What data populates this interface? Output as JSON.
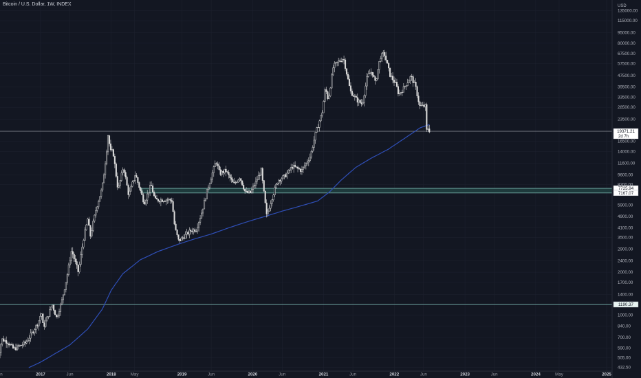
{
  "header": {
    "title": "Bitcoin / U.S. Dollar, 1W, INDEX",
    "currency": "USD"
  },
  "colors": {
    "background": "#131722",
    "grid": "#1e2230",
    "candle": "#d9d9d9",
    "ma_line": "#2f4fb8",
    "level_line": "#8fd6cc",
    "current_line": "#9598a1",
    "zone_fill": "#1e3a3c",
    "label_bg": "#e8f4f2"
  },
  "chart_data": {
    "type": "candlestick",
    "title": "Bitcoin / U.S. Dollar, 1W, INDEX",
    "y_scale": "log",
    "ylim": [
      430,
      155000
    ],
    "x_range": [
      "2016-05-15",
      "2025-01-01"
    ],
    "y_ticks": [
      "135000.00",
      "115000.00",
      "95000.00",
      "80000.00",
      "67500.00",
      "57500.00",
      "47500.00",
      "39500.00",
      "33500.00",
      "28500.00",
      "23500.00",
      "16500.00",
      "14000.00",
      "11600.00",
      "9600.00",
      "8200.00",
      "5900.00",
      "4900.00",
      "4100.00",
      "3500.00",
      "2900.00",
      "2400.00",
      "2000.00",
      "1700.00",
      "1400.00",
      "1000.00",
      "840.00",
      "700.00",
      "590.00",
      "505.00",
      "432.50"
    ],
    "x_ticks": [
      {
        "date": "2016-06-01",
        "label": "Jun"
      },
      {
        "date": "2017-01-01",
        "label": "2017"
      },
      {
        "date": "2017-06-01",
        "label": "Jun"
      },
      {
        "date": "2018-01-01",
        "label": "2018"
      },
      {
        "date": "2018-05-01",
        "label": "May"
      },
      {
        "date": "2019-01-01",
        "label": "2019"
      },
      {
        "date": "2019-06-01",
        "label": "Jun"
      },
      {
        "date": "2020-01-01",
        "label": "2020"
      },
      {
        "date": "2020-06-01",
        "label": "Jun"
      },
      {
        "date": "2021-01-01",
        "label": "2021"
      },
      {
        "date": "2021-06-01",
        "label": "Jun"
      },
      {
        "date": "2022-01-01",
        "label": "2022"
      },
      {
        "date": "2022-06-01",
        "label": "Jun"
      },
      {
        "date": "2023-01-01",
        "label": "2023"
      },
      {
        "date": "2023-06-01",
        "label": "Jun"
      },
      {
        "date": "2024-01-01",
        "label": "2024"
      },
      {
        "date": "2024-05-01",
        "label": "May"
      },
      {
        "date": "2025-01-01",
        "label": "2025"
      }
    ],
    "price_anchors": [
      [
        "2016-05-20",
        460
      ],
      [
        "2016-06-15",
        680
      ],
      [
        "2016-07-15",
        650
      ],
      [
        "2016-08-15",
        580
      ],
      [
        "2016-09-15",
        610
      ],
      [
        "2016-10-15",
        640
      ],
      [
        "2016-11-15",
        740
      ],
      [
        "2016-12-20",
        890
      ],
      [
        "2017-01-05",
        1050
      ],
      [
        "2017-01-15",
        820
      ],
      [
        "2017-02-15",
        1050
      ],
      [
        "2017-03-01",
        1200
      ],
      [
        "2017-03-25",
        960
      ],
      [
        "2017-04-20",
        1250
      ],
      [
        "2017-05-15",
        1800
      ],
      [
        "2017-06-10",
        2850
      ],
      [
        "2017-07-15",
        2000
      ],
      [
        "2017-08-10",
        3400
      ],
      [
        "2017-09-01",
        4700
      ],
      [
        "2017-09-15",
        3600
      ],
      [
        "2017-10-15",
        5600
      ],
      [
        "2017-11-15",
        7800
      ],
      [
        "2017-12-05",
        13000
      ],
      [
        "2017-12-17",
        19500
      ],
      [
        "2017-12-25",
        14000
      ],
      [
        "2018-01-10",
        14000
      ],
      [
        "2018-02-05",
        7500
      ],
      [
        "2018-03-05",
        11000
      ],
      [
        "2018-04-01",
        6900
      ],
      [
        "2018-05-05",
        9700
      ],
      [
        "2018-06-20",
        6100
      ],
      [
        "2018-07-25",
        8200
      ],
      [
        "2018-08-15",
        6400
      ],
      [
        "2018-09-10",
        6400
      ],
      [
        "2018-10-15",
        6450
      ],
      [
        "2018-11-10",
        6350
      ],
      [
        "2018-11-25",
        4100
      ],
      [
        "2018-12-15",
        3300
      ],
      [
        "2019-01-15",
        3600
      ],
      [
        "2019-02-15",
        3900
      ],
      [
        "2019-03-15",
        4000
      ],
      [
        "2019-04-10",
        5100
      ],
      [
        "2019-05-15",
        7800
      ],
      [
        "2019-06-26",
        12000
      ],
      [
        "2019-07-15",
        9800
      ],
      [
        "2019-08-15",
        10300
      ],
      [
        "2019-09-25",
        8200
      ],
      [
        "2019-10-26",
        9300
      ],
      [
        "2019-11-25",
        7200
      ],
      [
        "2019-12-20",
        7200
      ],
      [
        "2020-01-20",
        8700
      ],
      [
        "2020-02-14",
        10300
      ],
      [
        "2020-03-13",
        5000
      ],
      [
        "2020-04-15",
        7000
      ],
      [
        "2020-05-10",
        8800
      ],
      [
        "2020-06-15",
        9400
      ],
      [
        "2020-07-25",
        11000
      ],
      [
        "2020-09-10",
        10300
      ],
      [
        "2020-10-25",
        13000
      ],
      [
        "2020-11-20",
        18500
      ],
      [
        "2020-12-25",
        26500
      ],
      [
        "2021-01-10",
        39000
      ],
      [
        "2021-01-25",
        32000
      ],
      [
        "2021-02-20",
        55000
      ],
      [
        "2021-03-15",
        59000
      ],
      [
        "2021-04-14",
        63000
      ],
      [
        "2021-05-19",
        37000
      ],
      [
        "2021-06-22",
        32000
      ],
      [
        "2021-07-20",
        30000
      ],
      [
        "2021-08-15",
        47000
      ],
      [
        "2021-09-07",
        51000
      ],
      [
        "2021-09-25",
        42000
      ],
      [
        "2021-10-20",
        64000
      ],
      [
        "2021-11-10",
        68000
      ],
      [
        "2021-12-10",
        48000
      ],
      [
        "2022-01-10",
        41000
      ],
      [
        "2022-01-24",
        35000
      ],
      [
        "2022-02-20",
        39000
      ],
      [
        "2022-03-28",
        47000
      ],
      [
        "2022-04-20",
        40000
      ],
      [
        "2022-05-12",
        29000
      ],
      [
        "2022-06-10",
        29000
      ],
      [
        "2022-06-18",
        18500
      ],
      [
        "2022-06-26",
        21000
      ],
      [
        "2022-07-02",
        19371
      ]
    ],
    "ma_anchors": [
      [
        "2016-11-01",
        430
      ],
      [
        "2017-01-01",
        470
      ],
      [
        "2017-06-01",
        620
      ],
      [
        "2017-09-01",
        800
      ],
      [
        "2017-11-15",
        1100
      ],
      [
        "2018-01-01",
        1500
      ],
      [
        "2018-03-01",
        1950
      ],
      [
        "2018-06-01",
        2450
      ],
      [
        "2018-09-01",
        2800
      ],
      [
        "2018-12-15",
        3150
      ],
      [
        "2019-03-01",
        3400
      ],
      [
        "2019-06-01",
        3700
      ],
      [
        "2019-09-01",
        4100
      ],
      [
        "2019-12-01",
        4500
      ],
      [
        "2020-03-01",
        4900
      ],
      [
        "2020-06-01",
        5350
      ],
      [
        "2020-09-01",
        5800
      ],
      [
        "2020-12-01",
        6300
      ],
      [
        "2021-02-01",
        7300
      ],
      [
        "2021-04-01",
        8800
      ],
      [
        "2021-06-15",
        10800
      ],
      [
        "2021-09-01",
        12500
      ],
      [
        "2021-12-01",
        14500
      ],
      [
        "2022-03-01",
        17500
      ],
      [
        "2022-05-15",
        20500
      ],
      [
        "2022-07-02",
        21600
      ]
    ],
    "horizontal_levels": [
      {
        "price": 19371.21,
        "label": "19371.21",
        "sublabel": "2d 7h",
        "role": "current"
      },
      {
        "price": 1190.37,
        "label": "1190.37",
        "role": "level"
      }
    ],
    "zone": {
      "top": 7725.94,
      "bottom": 7167.07,
      "start": "2018-06-05",
      "labels": [
        "7725.94",
        "7167.07"
      ]
    }
  }
}
